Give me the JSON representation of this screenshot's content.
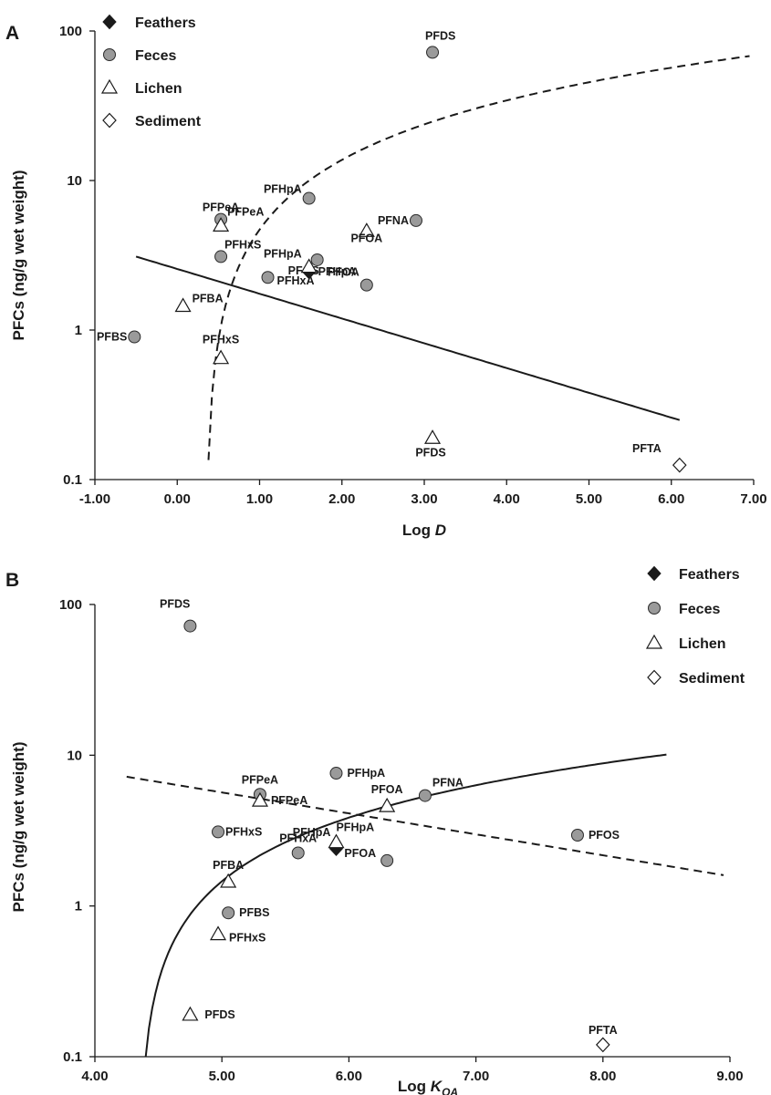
{
  "chart_data": [
    {
      "panel": "A",
      "type": "scatter",
      "xlabel_main": "Log ",
      "xlabel_italic": "D",
      "xlabel_sub": "",
      "ylabel": "PFCs (ng/g wet weight)",
      "xlim": [
        -1.0,
        7.0
      ],
      "ylim": [
        0.1,
        100
      ],
      "y_scale": "log",
      "x_ticks": [
        "-1.00",
        "0.00",
        "1.00",
        "2.00",
        "3.00",
        "4.00",
        "5.00",
        "6.00",
        "7.00"
      ],
      "y_ticks": [
        "0.1",
        "1",
        "10",
        "100"
      ],
      "legend": [
        {
          "name": "Feathers",
          "marker": "filled-diamond"
        },
        {
          "name": "Feces",
          "marker": "gray-circle"
        },
        {
          "name": "Lichen",
          "marker": "open-triangle"
        },
        {
          "name": "Sediment",
          "marker": "open-diamond"
        }
      ],
      "series": [
        {
          "name": "Feathers",
          "marker": "filled-diamond",
          "points": [
            {
              "x": 1.6,
              "y": 2.45,
              "label": "PFHpA"
            }
          ]
        },
        {
          "name": "Feces",
          "marker": "gray-circle",
          "points": [
            {
              "x": 3.1,
              "y": 72,
              "label": "PFDS"
            },
            {
              "x": 1.6,
              "y": 7.6,
              "label": "PFHpA"
            },
            {
              "x": 0.53,
              "y": 5.5,
              "label": "PFPeA"
            },
            {
              "x": 2.9,
              "y": 5.4,
              "label": "PFNA"
            },
            {
              "x": 0.53,
              "y": 3.1,
              "label": "PFHxS"
            },
            {
              "x": 1.7,
              "y": 2.95,
              "label": "PFOS"
            },
            {
              "x": 1.1,
              "y": 2.25,
              "label": "PFHxA"
            },
            {
              "x": 2.3,
              "y": 2.0,
              "label": "PFOA"
            },
            {
              "x": -0.52,
              "y": 0.9,
              "label": "PFBS"
            }
          ]
        },
        {
          "name": "Lichen",
          "marker": "open-triangle",
          "points": [
            {
              "x": 0.53,
              "y": 5.0,
              "label": "PFPeA"
            },
            {
              "x": 2.3,
              "y": 4.6,
              "label": "PFOA"
            },
            {
              "x": 1.6,
              "y": 2.65,
              "label": "PFHpA"
            },
            {
              "x": 0.07,
              "y": 1.45,
              "label": "PFBA"
            },
            {
              "x": 0.53,
              "y": 0.65,
              "label": "PFHxS"
            },
            {
              "x": 3.1,
              "y": 0.19,
              "label": "PFDS"
            }
          ]
        },
        {
          "name": "Sediment",
          "marker": "open-diamond",
          "points": [
            {
              "x": 6.1,
              "y": 0.125,
              "label": "PFTA"
            }
          ]
        }
      ],
      "fits": [
        {
          "style": "solid",
          "kind": "powerlaw",
          "x0": -0.5,
          "y0": 3.1,
          "x1": 6.1,
          "y1": 0.25
        },
        {
          "style": "dashed",
          "kind": "log",
          "c": 0.35,
          "x_start": 0.38,
          "x_end": 6.95,
          "y_start": 0.135,
          "y_end": 68
        }
      ]
    },
    {
      "panel": "B",
      "type": "scatter",
      "xlabel_main": "Log ",
      "xlabel_italic": "K",
      "xlabel_sub": "OA",
      "ylabel": "PFCs (ng/g wet weight)",
      "xlim": [
        4.0,
        9.0
      ],
      "ylim": [
        0.1,
        100
      ],
      "y_scale": "log",
      "x_ticks": [
        "4.00",
        "5.00",
        "6.00",
        "7.00",
        "8.00",
        "9.00"
      ],
      "y_ticks": [
        "0.1",
        "1",
        "10",
        "100"
      ],
      "legend": [
        {
          "name": "Feathers",
          "marker": "filled-diamond"
        },
        {
          "name": "Feces",
          "marker": "gray-circle"
        },
        {
          "name": "Lichen",
          "marker": "open-triangle"
        },
        {
          "name": "Sediment",
          "marker": "open-diamond"
        }
      ],
      "series": [
        {
          "name": "Feathers",
          "marker": "filled-diamond",
          "points": [
            {
              "x": 5.9,
              "y": 2.4,
              "label": "PFHpA"
            }
          ]
        },
        {
          "name": "Feces",
          "marker": "gray-circle",
          "points": [
            {
              "x": 4.75,
              "y": 72,
              "label": "PFDS"
            },
            {
              "x": 5.9,
              "y": 7.6,
              "label": "PFHpA"
            },
            {
              "x": 5.3,
              "y": 5.5,
              "label": "PFPeA"
            },
            {
              "x": 6.6,
              "y": 5.4,
              "label": "PFNA"
            },
            {
              "x": 4.97,
              "y": 3.1,
              "label": "PFHxS"
            },
            {
              "x": 7.8,
              "y": 2.95,
              "label": "PFOS"
            },
            {
              "x": 5.6,
              "y": 2.25,
              "label": "PFHxA"
            },
            {
              "x": 6.3,
              "y": 2.0,
              "label": "PFOA"
            },
            {
              "x": 5.05,
              "y": 0.9,
              "label": "PFBS"
            }
          ]
        },
        {
          "name": "Lichen",
          "marker": "open-triangle",
          "points": [
            {
              "x": 5.3,
              "y": 5.0,
              "label": "PFPeA"
            },
            {
              "x": 6.3,
              "y": 4.6,
              "label": "PFOA"
            },
            {
              "x": 5.9,
              "y": 2.65,
              "label": "PFHpA"
            },
            {
              "x": 5.05,
              "y": 1.45,
              "label": "PFBA"
            },
            {
              "x": 4.97,
              "y": 0.65,
              "label": "PFHxS"
            },
            {
              "x": 4.75,
              "y": 0.19,
              "label": "PFDS"
            }
          ]
        },
        {
          "name": "Sediment",
          "marker": "open-diamond",
          "points": [
            {
              "x": 8.0,
              "y": 0.12,
              "label": "PFTA"
            }
          ]
        }
      ],
      "fits": [
        {
          "style": "dashed",
          "kind": "powerlaw",
          "x0": 4.25,
          "y0": 7.2,
          "x1": 8.95,
          "y1": 1.6
        },
        {
          "style": "solid",
          "kind": "log",
          "c": 4.35,
          "x_start": 4.4,
          "x_end": 8.5,
          "y_start": 0.1,
          "y_end": 10.1
        }
      ]
    }
  ]
}
